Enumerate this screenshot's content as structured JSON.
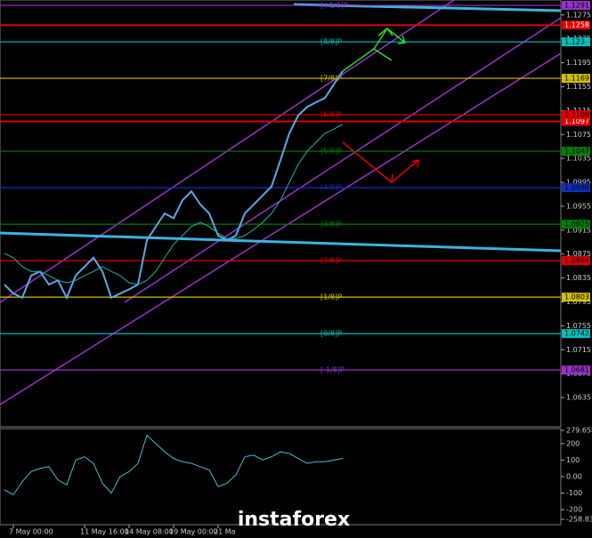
{
  "chart_data": [
    {
      "type": "line",
      "ylim": [
        1.0586,
        1.13
      ],
      "yticks": [
        1.1275,
        1.1235,
        1.1195,
        1.1155,
        1.1115,
        1.1075,
        1.1035,
        1.0995,
        1.0955,
        1.0915,
        1.0875,
        1.0835,
        1.0795,
        1.0755,
        1.0715,
        1.0675,
        1.0635
      ],
      "categories": [
        null,
        "7 May 00:00",
        null,
        null,
        null,
        null,
        null,
        null,
        null,
        "11 May 16:00",
        null,
        null,
        null,
        null,
        "14 May 08:00",
        null,
        null,
        null,
        null,
        "19 May 00:00",
        null,
        null,
        null,
        null,
        "21 Ma",
        null,
        null,
        null,
        null,
        null,
        null,
        null,
        null,
        null,
        null,
        null,
        null,
        null,
        null
      ],
      "series": [
        {
          "color": "#5fa8e8",
          "values": [
            1.0824,
            1.0809,
            1.0802,
            1.0839,
            1.0846,
            1.0824,
            1.0831,
            1.0802,
            1.0839,
            1.0854,
            1.0869,
            1.0846,
            1.0802,
            1.0809,
            1.0816,
            1.0824,
            1.0898,
            1.0921,
            1.0943,
            1.0935,
            1.0965,
            1.098,
            1.0958,
            1.0943,
            1.0906,
            1.0898,
            1.0906,
            1.0943,
            1.0958,
            1.0973,
            1.0988,
            1.1032,
            1.1077,
            1.1107,
            1.1121,
            1.1129,
            1.1136,
            1.1159,
            1.1181
          ]
        },
        {
          "color": "#20b2aa",
          "values": [
            1.0876,
            1.0869,
            1.0854,
            1.0846,
            1.0846,
            1.0839,
            1.0831,
            1.0827,
            1.0831,
            1.0839,
            1.0846,
            1.0854,
            1.0846,
            1.0839,
            1.0827,
            1.0824,
            1.0831,
            1.0846,
            1.0869,
            1.0891,
            1.0906,
            1.0921,
            1.0928,
            1.0921,
            1.091,
            1.0901,
            1.0901,
            1.0906,
            1.0916,
            1.0928,
            1.0943,
            1.0965,
            1.0995,
            1.1025,
            1.1047,
            1.1062,
            1.1077,
            1.1084,
            1.1092
          ]
        }
      ],
      "levels": [
        {
          "label": "[+1/8]P",
          "value": 1.1291,
          "color": "#9932cc"
        },
        {
          "label": "[8/8]P",
          "value": 1.123,
          "color": "#00bfbf"
        },
        {
          "label": "[7/8]P",
          "value": 1.1169,
          "color": "#d4c000"
        },
        {
          "label": "[6/8]P",
          "value": 1.1108,
          "color": "#e00000"
        },
        {
          "label": "[5/8]P",
          "value": 1.1047,
          "color": "#007f00"
        },
        {
          "label": "[4/8]P",
          "value": 1.0986,
          "color": "#1030c0"
        },
        {
          "label": "[3/8]P",
          "value": 1.0925,
          "color": "#007f00"
        },
        {
          "label": "[2/8]P",
          "value": 1.0864,
          "color": "#e00000"
        },
        {
          "label": "[1/8]P",
          "value": 1.0803,
          "color": "#d4c000"
        },
        {
          "label": "[0/8]P",
          "value": 1.0742,
          "color": "#00bfbf"
        },
        {
          "label": "[-1/8]P",
          "value": 1.0681,
          "color": "#9932cc"
        }
      ],
      "lines": [
        {
          "value": 1.1258,
          "color": "#e00000"
        },
        {
          "value": 1.1097,
          "color": "#e00000"
        }
      ]
    },
    {
      "type": "line",
      "ylim": [
        -258.834,
        279.6586
      ],
      "yticks": [
        {
          "value": 279.6586,
          "label": "279.6586"
        },
        200,
        100,
        {
          "value": 0,
          "label": "0.00"
        },
        -100,
        -200,
        {
          "value": -258.834,
          "label": "-258.834"
        }
      ],
      "series": [
        {
          "color": "#40c0d0",
          "values": [
            -80,
            -110,
            -30,
            30,
            50,
            60,
            -20,
            -50,
            100,
            120,
            80,
            -40,
            -100,
            0,
            30,
            80,
            250,
            200,
            150,
            110,
            90,
            80,
            60,
            40,
            -60,
            -40,
            10,
            120,
            130,
            100,
            120,
            150,
            140,
            110,
            80,
            90,
            90,
            100,
            110
          ]
        }
      ]
    }
  ],
  "logo": "instaforex"
}
